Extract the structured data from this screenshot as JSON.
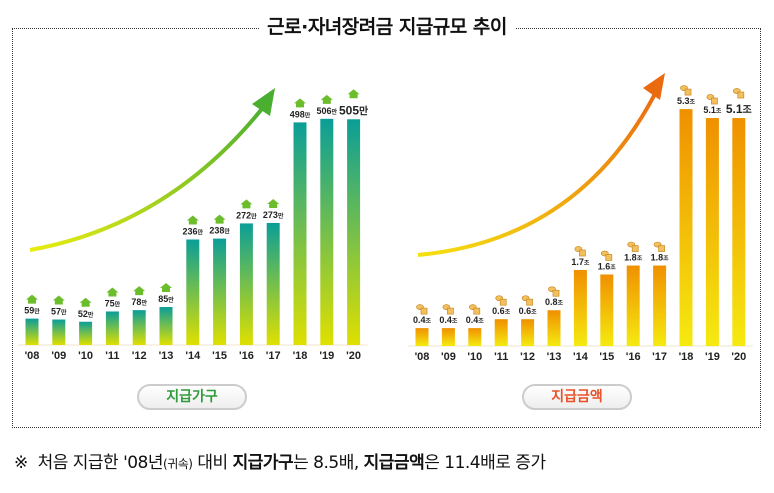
{
  "title": "근로·자녀장려금 지급규모 추이",
  "chart_data": [
    {
      "type": "bar",
      "legend_label": "지급가구",
      "categories": [
        "'08",
        "'09",
        "'10",
        "'11",
        "'12",
        "'13",
        "'14",
        "'15",
        "'16",
        "'17",
        "'18",
        "'19",
        "'20"
      ],
      "values": [
        59,
        57,
        52,
        75,
        78,
        85,
        236,
        238,
        272,
        273,
        498,
        506,
        505
      ],
      "unit": "만",
      "icon": "house-icon",
      "colors": {
        "top": "#0a9e98",
        "bottom": "#dfe000",
        "arrow": "#5db52e",
        "legend_text": "#2f9b3a"
      }
    },
    {
      "type": "bar",
      "legend_label": "지급금액",
      "categories": [
        "'08",
        "'09",
        "'10",
        "'11",
        "'12",
        "'13",
        "'14",
        "'15",
        "'16",
        "'17",
        "'18",
        "'19",
        "'20"
      ],
      "values": [
        0.4,
        0.4,
        0.4,
        0.6,
        0.6,
        0.8,
        1.7,
        1.6,
        1.8,
        1.8,
        5.3,
        5.1,
        5.1
      ],
      "unit": "조",
      "icon": "coins-icon",
      "colors": {
        "top": "#f09000",
        "bottom": "#f5ea10",
        "arrow": "#ea6a10",
        "legend_text": "#e8512a"
      }
    }
  ],
  "footnote": {
    "mark": "※",
    "text1": "처음 지급한 '08년",
    "paren": "(귀속)",
    "text2": "대비",
    "bold1": "지급가구",
    "text3": "는 8.5배, ",
    "bold2": "지급금액",
    "text4": "은 11.4배로 증가"
  }
}
